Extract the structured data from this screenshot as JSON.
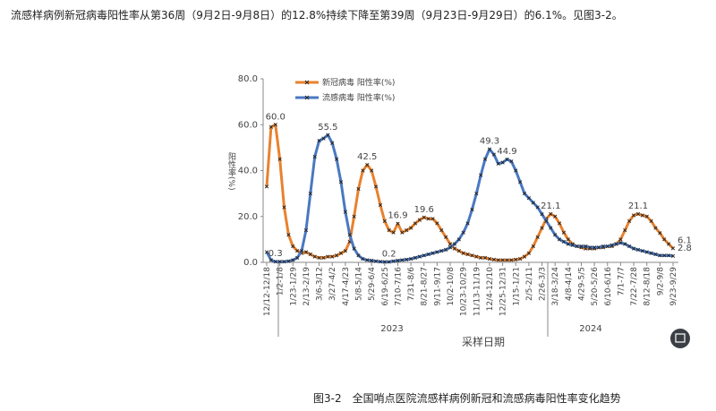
{
  "intro": "流感样病例新冠病毒阳性率从第36周（9月2日-9月8日）的12.8%持续下降至第39周（9月23日-9月29日）的6.1%。见图3-2。",
  "caption": "图3-2　全国哨点医院流感样病例新冠和流感病毒阳性率变化趋势",
  "chart_data": {
    "type": "line",
    "ylabel": "阳性率(%)",
    "xlabel": "采样日期",
    "years": [
      "2023",
      "2024"
    ],
    "ylim": [
      0,
      80
    ],
    "yticks": [
      {
        "value": 0,
        "label": "0.0"
      },
      {
        "value": 20,
        "label": "20.0"
      },
      {
        "value": 40,
        "label": "40.0"
      },
      {
        "value": 60,
        "label": "60.0"
      },
      {
        "value": 80,
        "label": "80.0"
      }
    ],
    "categories": [
      "12/12-12/18",
      null,
      null,
      "1/2-1/8",
      null,
      null,
      "1/23-1/29",
      null,
      null,
      "2/13-2/19",
      null,
      null,
      "3/6-3/12",
      null,
      null,
      "3/27-4/2",
      null,
      null,
      "4/17-4/23",
      null,
      null,
      "5/8-5/14",
      null,
      null,
      "5/29-6/4",
      null,
      null,
      "6/19-6/25",
      null,
      null,
      "7/10-7/16",
      null,
      null,
      "7/31-8/6",
      null,
      null,
      "8/21-8/27",
      null,
      null,
      "9/11-9/17",
      null,
      null,
      "10/2-10/8",
      null,
      null,
      "10/23-10/29",
      null,
      null,
      "11/13-11/19",
      null,
      null,
      "12/4-12/10",
      null,
      null,
      "12/25-12/31",
      null,
      null,
      "1/15-1/21",
      null,
      null,
      "2/5-2/11",
      null,
      null,
      "2/26-3/3",
      null,
      null,
      "3/18-3/24",
      null,
      null,
      "4/8-4/14",
      null,
      null,
      "4/29-5/5",
      null,
      null,
      "5/20-5/26",
      null,
      null,
      "6/10-6/16",
      null,
      null,
      "7/1-7/7",
      null,
      null,
      "7/22-7/28",
      null,
      null,
      "8/12-8/18",
      null,
      null,
      "9/2-9/8",
      null,
      null,
      "9/23-9/29"
    ],
    "series": [
      {
        "name": "新冠病毒 阳性率(%)",
        "color": "#e8822f",
        "values": [
          33,
          59,
          60,
          45,
          24,
          12,
          7,
          5,
          4,
          4.5,
          3.5,
          2.5,
          2,
          2,
          2.5,
          2.5,
          3,
          4,
          5,
          9,
          20,
          32,
          40,
          42.5,
          40,
          33,
          25,
          18,
          14,
          13,
          16.9,
          13,
          14,
          15,
          17,
          18.5,
          19.6,
          19,
          19,
          17,
          14,
          11,
          8,
          6,
          5,
          4,
          3.5,
          3,
          2.5,
          2,
          2,
          1.5,
          1.2,
          1,
          1,
          1,
          1,
          1.2,
          1.5,
          2.5,
          4,
          7,
          11,
          15,
          19,
          21.1,
          20,
          17,
          13,
          10,
          8,
          7,
          6.5,
          6,
          6,
          6,
          6.5,
          6.5,
          7,
          7,
          8,
          10,
          14,
          18,
          20.5,
          21.1,
          20.5,
          20,
          18,
          15,
          12.8,
          10,
          8,
          6.1
        ],
        "value_labels": [
          null,
          null,
          "60.0",
          null,
          null,
          null,
          null,
          null,
          null,
          null,
          null,
          null,
          null,
          null,
          null,
          null,
          null,
          null,
          null,
          null,
          null,
          null,
          null,
          "42.5",
          null,
          null,
          null,
          null,
          null,
          null,
          "16.9",
          null,
          null,
          null,
          null,
          null,
          "19.6",
          null,
          null,
          null,
          null,
          null,
          null,
          null,
          null,
          null,
          null,
          null,
          null,
          null,
          null,
          null,
          null,
          null,
          null,
          null,
          null,
          null,
          null,
          null,
          null,
          null,
          null,
          null,
          null,
          "21.1",
          null,
          null,
          null,
          null,
          null,
          null,
          null,
          null,
          null,
          null,
          null,
          null,
          null,
          null,
          null,
          null,
          null,
          null,
          null,
          "21.1",
          null,
          null,
          null,
          null,
          null,
          null,
          null,
          "6.1"
        ]
      },
      {
        "name": "流感病毒 阳性率(%)",
        "color": "#4a78c2",
        "values": [
          4.5,
          1,
          0.3,
          0.3,
          0.3,
          0.5,
          1,
          2,
          5,
          14,
          30,
          46,
          53,
          54,
          55.5,
          52,
          45,
          35,
          22,
          12,
          6,
          3,
          1.5,
          1,
          0.8,
          0.5,
          0.3,
          0.2,
          0.2,
          0.5,
          0.8,
          1,
          1.2,
          1.5,
          2,
          2.5,
          3,
          3.5,
          4,
          4.5,
          5,
          5.5,
          6.5,
          8,
          10,
          13,
          17,
          23,
          30,
          38,
          45,
          49.3,
          47,
          43,
          43.5,
          44.9,
          44,
          40,
          35,
          30,
          28,
          26,
          24,
          21,
          18,
          15,
          12,
          10,
          9,
          8,
          7.5,
          7,
          7,
          7,
          6.5,
          6.5,
          6.5,
          7,
          7,
          7.5,
          8,
          8.5,
          8,
          7,
          6,
          5.5,
          5,
          4.5,
          4,
          3.5,
          3,
          3,
          3,
          2.8
        ],
        "value_labels": [
          null,
          null,
          "0.3",
          null,
          null,
          null,
          null,
          null,
          null,
          null,
          null,
          null,
          null,
          null,
          "55.5",
          null,
          null,
          null,
          null,
          null,
          null,
          null,
          null,
          null,
          null,
          null,
          null,
          null,
          "0.2",
          null,
          null,
          null,
          null,
          null,
          null,
          null,
          null,
          null,
          null,
          null,
          null,
          null,
          null,
          null,
          null,
          null,
          null,
          null,
          null,
          null,
          null,
          "49.3",
          null,
          null,
          null,
          "44.9",
          null,
          null,
          null,
          null,
          null,
          null,
          null,
          null,
          null,
          null,
          null,
          null,
          null,
          null,
          null,
          null,
          null,
          null,
          null,
          null,
          null,
          null,
          null,
          null,
          null,
          null,
          null,
          null,
          null,
          null,
          null,
          null,
          null,
          null,
          null,
          null,
          null,
          "2.8"
        ]
      }
    ]
  }
}
